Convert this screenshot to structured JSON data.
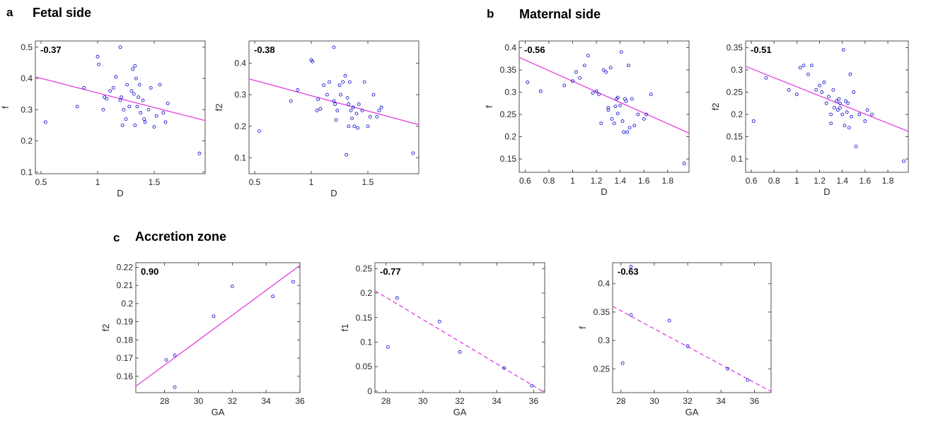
{
  "figure": {
    "sections": [
      {
        "letter": "a",
        "title": "Fetal side"
      },
      {
        "letter": "b",
        "title": "Maternal side"
      },
      {
        "letter": "c",
        "title": "Accretion zone"
      }
    ]
  },
  "colors": {
    "points": "#1f1fd0",
    "fit": "#e040e0",
    "frame": "#000000"
  },
  "chart_data": [
    {
      "type": "scatter",
      "annotation": "-0.37",
      "xlabel": "D",
      "ylabel": "f",
      "xlim": [
        0.45,
        1.95
      ],
      "ylim": [
        0.095,
        0.52
      ],
      "xticks": [
        0.5,
        1,
        1.5
      ],
      "xtick_labels": [
        "0.5",
        "1",
        "1.5"
      ],
      "yticks": [
        0.1,
        0.2,
        0.3,
        0.4,
        0.5
      ],
      "ytick_labels": [
        "0.1",
        "0.2",
        "0.3",
        "0.4",
        "0.5"
      ],
      "fit": {
        "x": [
          0.45,
          1.95
        ],
        "y": [
          0.405,
          0.265
        ],
        "style": "solid"
      },
      "points": {
        "x": [
          0.54,
          0.82,
          0.88,
          1.0,
          1.01,
          1.05,
          1.06,
          1.08,
          1.11,
          1.14,
          1.16,
          1.2,
          1.2,
          1.21,
          1.22,
          1.23,
          1.25,
          1.26,
          1.28,
          1.3,
          1.31,
          1.32,
          1.33,
          1.33,
          1.34,
          1.35,
          1.36,
          1.37,
          1.38,
          1.4,
          1.41,
          1.42,
          1.45,
          1.47,
          1.5,
          1.52,
          1.55,
          1.58,
          1.6,
          1.62,
          1.9
        ],
        "y": [
          0.26,
          0.31,
          0.37,
          0.47,
          0.445,
          0.3,
          0.34,
          0.335,
          0.36,
          0.37,
          0.405,
          0.5,
          0.33,
          0.34,
          0.25,
          0.3,
          0.27,
          0.38,
          0.31,
          0.36,
          0.43,
          0.35,
          0.44,
          0.25,
          0.4,
          0.31,
          0.34,
          0.38,
          0.29,
          0.33,
          0.27,
          0.26,
          0.3,
          0.37,
          0.245,
          0.28,
          0.38,
          0.29,
          0.26,
          0.32,
          0.16
        ]
      }
    },
    {
      "type": "scatter",
      "annotation": "-0.38",
      "xlabel": "D",
      "ylabel": "f2",
      "xlim": [
        0.45,
        1.95
      ],
      "ylim": [
        0.05,
        0.47
      ],
      "xticks": [
        0.5,
        1,
        1.5
      ],
      "xtick_labels": [
        "0.5",
        "1",
        "1.5"
      ],
      "yticks": [
        0.1,
        0.2,
        0.3,
        0.4
      ],
      "ytick_labels": [
        "0.1",
        "0.2",
        "0.3",
        "0.4"
      ],
      "fit": {
        "x": [
          0.45,
          1.95
        ],
        "y": [
          0.35,
          0.205
        ],
        "style": "solid"
      },
      "points": {
        "x": [
          0.54,
          0.82,
          0.88,
          1.0,
          1.01,
          1.05,
          1.06,
          1.08,
          1.11,
          1.14,
          1.16,
          1.2,
          1.2,
          1.21,
          1.22,
          1.23,
          1.25,
          1.26,
          1.28,
          1.3,
          1.31,
          1.32,
          1.33,
          1.33,
          1.34,
          1.35,
          1.36,
          1.37,
          1.38,
          1.4,
          1.41,
          1.42,
          1.45,
          1.47,
          1.5,
          1.52,
          1.55,
          1.58,
          1.6,
          1.62,
          1.9
        ],
        "y": [
          0.185,
          0.28,
          0.315,
          0.41,
          0.405,
          0.25,
          0.285,
          0.255,
          0.33,
          0.3,
          0.34,
          0.45,
          0.28,
          0.27,
          0.22,
          0.25,
          0.33,
          0.3,
          0.34,
          0.36,
          0.11,
          0.29,
          0.2,
          0.27,
          0.34,
          0.25,
          0.225,
          0.26,
          0.2,
          0.24,
          0.195,
          0.27,
          0.25,
          0.34,
          0.2,
          0.23,
          0.3,
          0.23,
          0.25,
          0.26,
          0.115
        ]
      }
    },
    {
      "type": "scatter",
      "annotation": "-0.56",
      "xlabel": "D",
      "ylabel": "f",
      "xlim": [
        0.55,
        1.98
      ],
      "ylim": [
        0.12,
        0.415
      ],
      "xticks": [
        0.6,
        0.8,
        1,
        1.2,
        1.4,
        1.6,
        1.8
      ],
      "xtick_labels": [
        "0.6",
        "0.8",
        "1",
        "1.2",
        "1.4",
        "1.6",
        "1.8"
      ],
      "yticks": [
        0.15,
        0.2,
        0.25,
        0.3,
        0.35,
        0.4
      ],
      "ytick_labels": [
        "0.15",
        "0.2",
        "0.25",
        "0.3",
        "0.35",
        "0.4"
      ],
      "fit": {
        "x": [
          0.55,
          1.98
        ],
        "y": [
          0.378,
          0.208
        ],
        "style": "solid"
      },
      "points": {
        "x": [
          0.62,
          0.73,
          0.93,
          1.0,
          1.03,
          1.06,
          1.1,
          1.13,
          1.17,
          1.2,
          1.22,
          1.24,
          1.26,
          1.28,
          1.3,
          1.3,
          1.32,
          1.33,
          1.35,
          1.36,
          1.37,
          1.38,
          1.38,
          1.4,
          1.41,
          1.42,
          1.43,
          1.44,
          1.45,
          1.46,
          1.47,
          1.48,
          1.5,
          1.52,
          1.55,
          1.6,
          1.62,
          1.66,
          1.94
        ],
        "y": [
          0.322,
          0.302,
          0.315,
          0.325,
          0.345,
          0.332,
          0.36,
          0.382,
          0.298,
          0.302,
          0.295,
          0.23,
          0.35,
          0.345,
          0.265,
          0.26,
          0.355,
          0.24,
          0.23,
          0.268,
          0.285,
          0.252,
          0.288,
          0.27,
          0.39,
          0.235,
          0.21,
          0.285,
          0.28,
          0.21,
          0.36,
          0.22,
          0.285,
          0.225,
          0.25,
          0.24,
          0.25,
          0.295,
          0.14
        ]
      }
    },
    {
      "type": "scatter",
      "annotation": "-0.51",
      "xlabel": "D",
      "ylabel": "f2",
      "xlim": [
        0.55,
        1.98
      ],
      "ylim": [
        0.07,
        0.365
      ],
      "xticks": [
        0.6,
        0.8,
        1,
        1.2,
        1.4,
        1.6,
        1.8
      ],
      "xtick_labels": [
        "0.6",
        "0.8",
        "1",
        "1.2",
        "1.4",
        "1.6",
        "1.8"
      ],
      "yticks": [
        0.1,
        0.15,
        0.2,
        0.25,
        0.3,
        0.35
      ],
      "ytick_labels": [
        "0.1",
        "0.15",
        "0.2",
        "0.25",
        "0.3",
        "0.35"
      ],
      "fit": {
        "x": [
          0.55,
          1.98
        ],
        "y": [
          0.308,
          0.162
        ],
        "style": "solid"
      },
      "points": {
        "x": [
          0.62,
          0.73,
          0.93,
          1.0,
          1.03,
          1.06,
          1.1,
          1.13,
          1.17,
          1.2,
          1.22,
          1.24,
          1.26,
          1.28,
          1.3,
          1.3,
          1.32,
          1.33,
          1.35,
          1.36,
          1.37,
          1.38,
          1.38,
          1.4,
          1.41,
          1.42,
          1.43,
          1.44,
          1.45,
          1.46,
          1.47,
          1.48,
          1.5,
          1.52,
          1.55,
          1.6,
          1.62,
          1.66,
          1.94
        ],
        "y": [
          0.185,
          0.282,
          0.255,
          0.245,
          0.305,
          0.31,
          0.29,
          0.31,
          0.255,
          0.265,
          0.25,
          0.272,
          0.225,
          0.24,
          0.2,
          0.18,
          0.255,
          0.215,
          0.23,
          0.21,
          0.235,
          0.215,
          0.225,
          0.2,
          0.345,
          0.175,
          0.23,
          0.205,
          0.225,
          0.17,
          0.29,
          0.195,
          0.25,
          0.128,
          0.2,
          0.185,
          0.21,
          0.2,
          0.095
        ]
      }
    },
    {
      "type": "scatter",
      "annotation": "0.90",
      "xlabel": "GA",
      "ylabel": "f2",
      "xlim": [
        26.3,
        36.0
      ],
      "ylim": [
        0.151,
        0.2225
      ],
      "xticks": [
        28,
        30,
        32,
        34,
        36
      ],
      "xtick_labels": [
        "28",
        "30",
        "32",
        "34",
        "36"
      ],
      "yticks": [
        0.16,
        0.17,
        0.18,
        0.19,
        0.2,
        0.21,
        0.22
      ],
      "ytick_labels": [
        "0.16",
        "0.17",
        "0.18",
        "0.19",
        "0.2",
        "0.21",
        "0.22"
      ],
      "fit": {
        "x": [
          26.3,
          36.0
        ],
        "y": [
          0.1545,
          0.221
        ],
        "style": "solid"
      },
      "points": {
        "x": [
          28.1,
          28.6,
          28.6,
          30.9,
          32.0,
          34.4,
          35.6
        ],
        "y": [
          0.169,
          0.1715,
          0.154,
          0.193,
          0.2095,
          0.204,
          0.212
        ]
      }
    },
    {
      "type": "scatter",
      "annotation": "-0.77",
      "xlabel": "GA",
      "ylabel": "f1",
      "xlim": [
        27.4,
        36.6
      ],
      "ylim": [
        -0.003,
        0.262
      ],
      "xticks": [
        28,
        30,
        32,
        34,
        36
      ],
      "xtick_labels": [
        "28",
        "30",
        "32",
        "34",
        "36"
      ],
      "yticks": [
        0,
        0.05,
        0.1,
        0.15,
        0.2,
        0.25
      ],
      "ytick_labels": [
        "0",
        "0.05",
        "0.1",
        "0.15",
        "0.2",
        "0.25"
      ],
      "fit": {
        "x": [
          27.4,
          36.6
        ],
        "y": [
          0.205,
          -0.003
        ],
        "style": "dashed"
      },
      "points": {
        "x": [
          28.1,
          28.6,
          30.9,
          32.0,
          34.4,
          35.9
        ],
        "y": [
          0.09,
          0.19,
          0.142,
          0.08,
          0.047,
          0.011
        ]
      }
    },
    {
      "type": "scatter",
      "annotation": "-0.63",
      "xlabel": "GA",
      "ylabel": "f",
      "xlim": [
        27.5,
        37.0
      ],
      "ylim": [
        0.208,
        0.437
      ],
      "xticks": [
        28,
        30,
        32,
        34,
        36
      ],
      "xtick_labels": [
        "28",
        "30",
        "32",
        "34",
        "36"
      ],
      "yticks": [
        0.25,
        0.3,
        0.35,
        0.4
      ],
      "ytick_labels": [
        "0.25",
        "0.3",
        "0.35",
        "0.4"
      ],
      "fit": {
        "x": [
          27.5,
          37.0
        ],
        "y": [
          0.36,
          0.21
        ],
        "style": "dashed"
      },
      "points": {
        "x": [
          28.1,
          28.6,
          28.6,
          30.9,
          32.0,
          34.4,
          35.6
        ],
        "y": [
          0.26,
          0.345,
          0.43,
          0.335,
          0.29,
          0.25,
          0.23
        ]
      }
    }
  ]
}
